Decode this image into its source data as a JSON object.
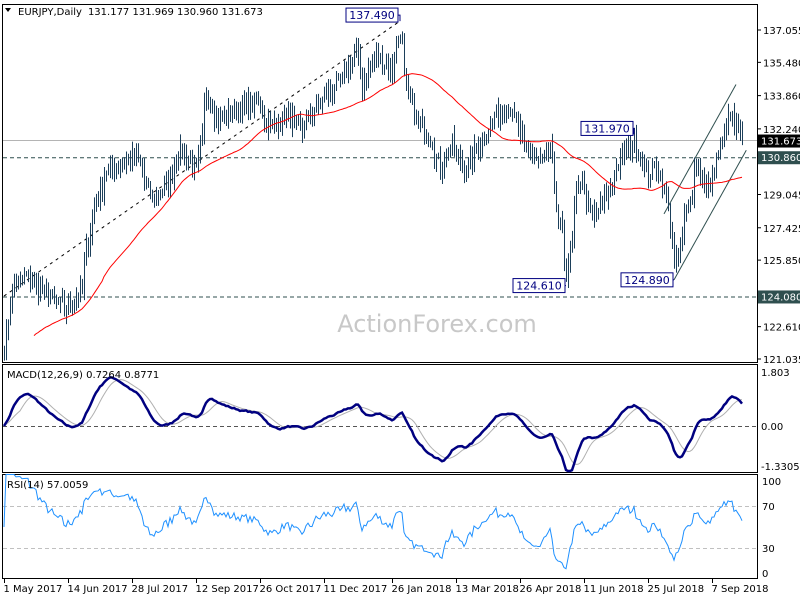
{
  "header": {
    "symbol": "EURJPY,Daily",
    "ohlc": "131.177 131.969 130.960 131.673",
    "menu_icon": "triangle-down-icon"
  },
  "watermark": "ActionForex.com",
  "colors": {
    "bars": "#1c3f5a",
    "ma": "#ff0000",
    "macd": "#000080",
    "signal": "#b0b0b0",
    "rsi": "#1e90ff",
    "current_price_bg": "#000000",
    "level_bg": "#2f4f4f",
    "annotation": "#000080"
  },
  "chart_data": [
    {
      "type": "ohlc",
      "title": "EURJPY,Daily",
      "y_ticks": [
        "137.055",
        "135.480",
        "133.860",
        "132.240",
        "129.045",
        "127.425",
        "125.850",
        "122.610",
        "121.035"
      ],
      "ylim": [
        121.035,
        137.055
      ],
      "x_ticks": [
        "1 May 2017",
        "14 Jun 2017",
        "28 Jul 2017",
        "12 Sep 2017",
        "26 Oct 2017",
        "11 Dec 2017",
        "26 Jan 2018",
        "13 Mar 2018",
        "26 Apr 2018",
        "11 Jun 2018",
        "25 Jul 2018",
        "7 Sep 2018"
      ],
      "x_tick_dates": [
        "2017-05-01",
        "2017-06-14",
        "2017-07-28",
        "2017-09-12",
        "2017-10-26",
        "2017-12-11",
        "2018-01-26",
        "2018-03-13",
        "2018-04-26",
        "2018-06-11",
        "2018-07-25",
        "2018-09-07"
      ],
      "close_path": [
        [
          "2017-05-01",
          121.5
        ],
        [
          "2017-05-05",
          124.4
        ],
        [
          "2017-05-16",
          125.1
        ],
        [
          "2017-05-26",
          124.4
        ],
        [
          "2017-06-13",
          123.4
        ],
        [
          "2017-06-23",
          124.4
        ],
        [
          "2017-06-30",
          127.8
        ],
        [
          "2017-07-11",
          130.2
        ],
        [
          "2017-08-01",
          130.9
        ],
        [
          "2017-08-11",
          128.8
        ],
        [
          "2017-08-22",
          129.5
        ],
        [
          "2017-09-01",
          131.2
        ],
        [
          "2017-09-12",
          130.2
        ],
        [
          "2017-09-19",
          133.9
        ],
        [
          "2017-09-26",
          132.7
        ],
        [
          "2017-10-10",
          133.2
        ],
        [
          "2017-10-24",
          133.6
        ],
        [
          "2017-11-03",
          132.2
        ],
        [
          "2017-11-14",
          132.9
        ],
        [
          "2017-11-24",
          132.2
        ],
        [
          "2017-12-08",
          133.6
        ],
        [
          "2017-12-22",
          134.6
        ],
        [
          "2018-01-02",
          136.1
        ],
        [
          "2018-01-05",
          134.4
        ],
        [
          "2018-01-16",
          135.8
        ],
        [
          "2018-01-26",
          135.1
        ],
        [
          "2018-02-01",
          137.0
        ],
        [
          "2018-02-06",
          134.1
        ],
        [
          "2018-02-13",
          132.7
        ],
        [
          "2018-02-23",
          131.7
        ],
        [
          "2018-03-02",
          130.2
        ],
        [
          "2018-03-09",
          131.5
        ],
        [
          "2018-03-19",
          130.2
        ],
        [
          "2018-03-30",
          131.7
        ],
        [
          "2018-04-09",
          132.9
        ],
        [
          "2018-04-20",
          133.3
        ],
        [
          "2018-04-30",
          131.2
        ],
        [
          "2018-05-10",
          130.7
        ],
        [
          "2018-05-17",
          131.2
        ],
        [
          "2018-05-23",
          127.8
        ],
        [
          "2018-05-29",
          125.2
        ],
        [
          "2018-06-04",
          128.5
        ],
        [
          "2018-06-08",
          130.0
        ],
        [
          "2018-06-15",
          127.8
        ],
        [
          "2018-06-25",
          128.8
        ],
        [
          "2018-07-06",
          130.9
        ],
        [
          "2018-07-16",
          131.6
        ],
        [
          "2018-07-24",
          130.0
        ],
        [
          "2018-07-31",
          130.5
        ],
        [
          "2018-08-07",
          128.8
        ],
        [
          "2018-08-13",
          125.4
        ],
        [
          "2018-08-21",
          128.3
        ],
        [
          "2018-08-28",
          130.5
        ],
        [
          "2018-09-04",
          129.3
        ],
        [
          "2018-09-11",
          130.7
        ],
        [
          "2018-09-20",
          132.9
        ],
        [
          "2018-09-25",
          132.2
        ],
        [
          "2018-09-28",
          131.673
        ]
      ],
      "moving_average": "red line",
      "levels": {
        "current": "131.673",
        "level_1": "130.860",
        "level_2": "124.080"
      },
      "annotations": [
        {
          "label": "137.490",
          "date": "2018-02-01"
        },
        {
          "label": "131.970",
          "date": "2018-07-16"
        },
        {
          "label": "124.610",
          "date": "2018-05-29"
        },
        {
          "label": "124.890",
          "date": "2018-08-13"
        }
      ],
      "trendline": {
        "from": [
          "2017-05-01",
          124.1
        ],
        "to": [
          "2018-02-01",
          137.49
        ]
      },
      "channel": {
        "lower_from": [
          "2018-08-13",
          124.89
        ],
        "lower_to": [
          "2018-10-01",
          131.2
        ],
        "upper_from": [
          "2018-08-06",
          128.1
        ],
        "upper_to": [
          "2018-09-25",
          134.4
        ]
      }
    },
    {
      "type": "line",
      "title": "MACD(12,26,9) 0.7264 0.8771",
      "y_ticks": [
        "1.803",
        "0.00",
        "-1.3305"
      ],
      "ylim": [
        -1.3305,
        1.803
      ],
      "series": [
        "MACD",
        "Signal"
      ]
    },
    {
      "type": "line",
      "title": "RSI(14) 57.0059",
      "y_ticks": [
        "100",
        "70",
        "30",
        "0"
      ],
      "ylim": [
        0,
        100
      ],
      "levels": [
        70,
        30
      ]
    }
  ]
}
